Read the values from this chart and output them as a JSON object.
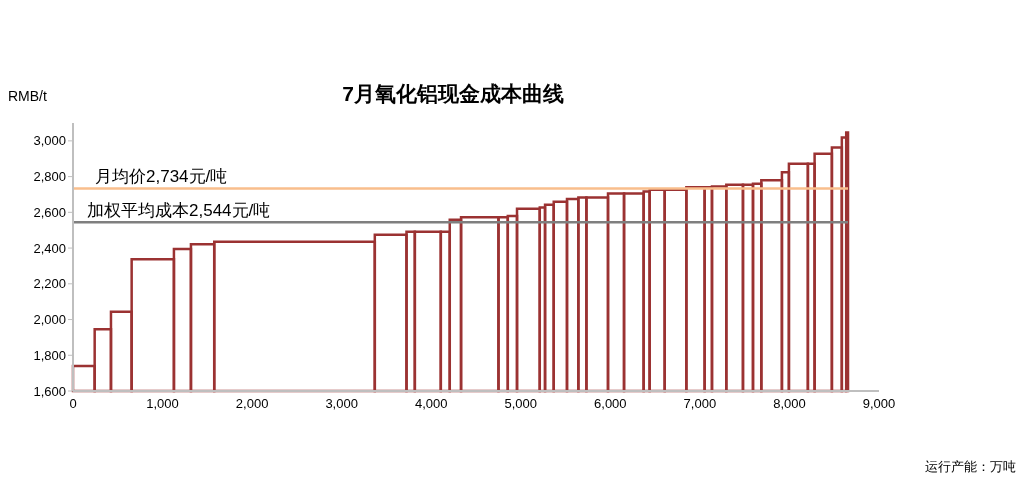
{
  "chart_data": {
    "type": "histogram",
    "title": "7月氧化铝现金成本曲线",
    "ylabel": "RMB/t",
    "xlabel": "运行产能：万吨",
    "bins": [
      0,
      242,
      424,
      655,
      1127,
      1317,
      1577,
      3370,
      3724,
      3817,
      4107,
      4207,
      4333,
      4751,
      4855,
      4958,
      5212,
      5271,
      5368,
      5516,
      5643,
      5733,
      5974,
      6153,
      6372,
      6439,
      6607,
      6849,
      7053,
      7135,
      7295,
      7481,
      7593,
      7686,
      7916,
      7994,
      8206,
      8281,
      8474,
      8585,
      8634,
      8654
    ],
    "values": [
      1740,
      1946,
      2043,
      2338,
      2395,
      2422,
      2436,
      2474,
      2492,
      2492,
      2492,
      2558,
      2573,
      2573,
      2580,
      2620,
      2627,
      2642,
      2659,
      2674,
      2683,
      2683,
      2705,
      2705,
      2716,
      2726,
      2726,
      2741,
      2741,
      2744,
      2754,
      2754,
      2760,
      2780,
      2825,
      2872,
      2872,
      2928,
      2963,
      3019,
      3047
    ],
    "color": "#9b3232",
    "xlim": [
      0,
      9000
    ],
    "xticks": [
      0,
      {
        "value": 1000,
        "label": "1,000"
      },
      {
        "value": 2000,
        "label": "2,000"
      },
      {
        "value": 3000,
        "label": "3,000"
      },
      {
        "value": 4000,
        "label": "4,000"
      },
      {
        "value": 5000,
        "label": "5,000"
      },
      {
        "value": 6000,
        "label": "6,000"
      },
      {
        "value": 7000,
        "label": "7,000"
      },
      {
        "value": 8000,
        "label": "8,000"
      },
      {
        "value": 9000,
        "label": "9,000"
      }
    ],
    "ylim": [
      1600,
      3100
    ],
    "yticks": [
      {
        "value": 1600,
        "label": "1,600"
      },
      {
        "value": 1800,
        "label": "1,800"
      },
      {
        "value": 2000,
        "label": "2,000"
      },
      {
        "value": 2200,
        "label": "2,200"
      },
      {
        "value": 2400,
        "label": "2,400"
      },
      {
        "value": 2600,
        "label": "2,600"
      },
      {
        "value": 2800,
        "label": "2,800"
      },
      {
        "value": 3000,
        "label": "3,000"
      }
    ],
    "ref_lines": [
      {
        "axis": "y",
        "value": 2734,
        "label": "月均价2,734元/吨",
        "color": "#f9be8c"
      },
      {
        "axis": "y",
        "value": 2544,
        "label": "加权平均成本2,544元/吨",
        "color": "#7f7f7f"
      }
    ],
    "grid": false
  }
}
